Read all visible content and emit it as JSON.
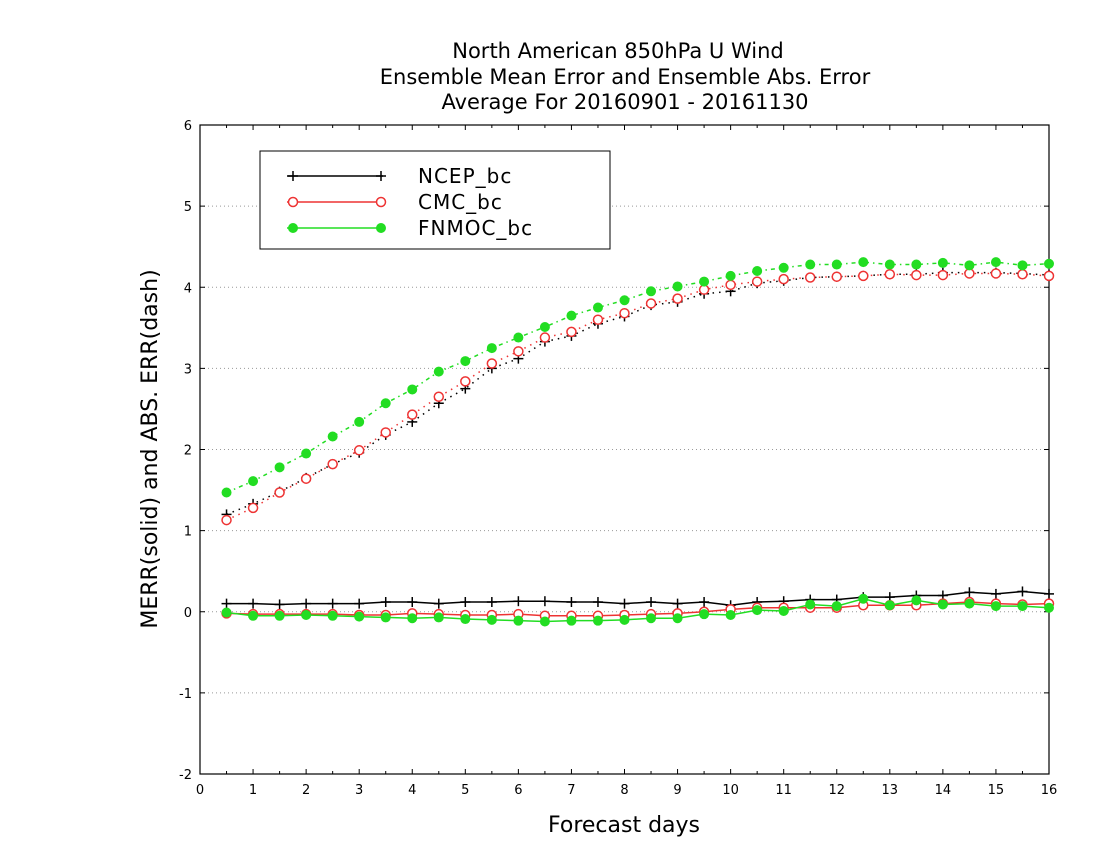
{
  "chart_data": {
    "type": "line",
    "title_lines": [
      "North American 850hPa U Wind",
      "Ensemble Mean Error and Ensemble Abs. Error",
      "Average For 20160901 - 20161130"
    ],
    "xlabel": "Forecast days",
    "ylabel": "MERR(solid) and ABS. ERR(dash)",
    "xlim": [
      0,
      16
    ],
    "ylim": [
      -2,
      6
    ],
    "x_ticks": [
      "0",
      "1",
      "2",
      "3",
      "4",
      "5",
      "6",
      "7",
      "8",
      "9",
      "10",
      "11",
      "12",
      "13",
      "14",
      "15",
      "16"
    ],
    "y_ticks": [
      "-2",
      "-1",
      "0",
      "1",
      "2",
      "3",
      "4",
      "5",
      "6"
    ],
    "grid": "horizontal dotted",
    "legend_position": "top-left",
    "x": [
      0.5,
      1,
      1.5,
      2,
      2.5,
      3,
      3.5,
      4,
      4.5,
      5,
      5.5,
      6,
      6.5,
      7,
      7.5,
      8,
      8.5,
      9,
      9.5,
      10,
      10.5,
      11,
      11.5,
      12,
      12.5,
      13,
      13.5,
      14,
      14.5,
      15,
      15.5,
      16
    ],
    "series": [
      {
        "name": "NCEP_bc",
        "color": "#000000",
        "marker": "plus",
        "merr": [
          0.1,
          0.1,
          0.09,
          0.1,
          0.1,
          0.1,
          0.12,
          0.12,
          0.1,
          0.12,
          0.12,
          0.13,
          0.13,
          0.12,
          0.12,
          0.1,
          0.12,
          0.1,
          0.12,
          0.08,
          0.12,
          0.13,
          0.15,
          0.15,
          0.18,
          0.18,
          0.2,
          0.2,
          0.24,
          0.22,
          0.25,
          0.22
        ],
        "abs_err": [
          1.2,
          1.33,
          1.48,
          1.65,
          1.82,
          1.96,
          2.18,
          2.34,
          2.57,
          2.75,
          3.0,
          3.12,
          3.33,
          3.4,
          3.55,
          3.64,
          3.78,
          3.82,
          3.92,
          3.95,
          4.05,
          4.08,
          4.12,
          4.13,
          4.14,
          4.16,
          4.16,
          4.18,
          4.18,
          4.18,
          4.17,
          4.15
        ]
      },
      {
        "name": "CMC_bc",
        "color": "#ee3333",
        "marker": "open-circle",
        "merr": [
          -0.02,
          -0.03,
          -0.03,
          -0.03,
          -0.03,
          -0.04,
          -0.04,
          -0.02,
          -0.03,
          -0.04,
          -0.04,
          -0.03,
          -0.05,
          -0.05,
          -0.05,
          -0.04,
          -0.03,
          -0.02,
          0.0,
          0.03,
          0.05,
          0.05,
          0.05,
          0.05,
          0.08,
          0.08,
          0.08,
          0.1,
          0.12,
          0.1,
          0.09,
          0.1
        ],
        "abs_err": [
          1.13,
          1.28,
          1.47,
          1.64,
          1.82,
          1.99,
          2.21,
          2.43,
          2.65,
          2.84,
          3.06,
          3.21,
          3.38,
          3.45,
          3.6,
          3.68,
          3.8,
          3.86,
          3.97,
          4.03,
          4.07,
          4.1,
          4.12,
          4.13,
          4.14,
          4.16,
          4.15,
          4.15,
          4.17,
          4.17,
          4.16,
          4.14
        ]
      },
      {
        "name": "FNMOC_bc",
        "color": "#22dd22",
        "marker": "filled-circle",
        "merr": [
          -0.01,
          -0.05,
          -0.05,
          -0.04,
          -0.05,
          -0.06,
          -0.07,
          -0.08,
          -0.07,
          -0.09,
          -0.1,
          -0.11,
          -0.12,
          -0.11,
          -0.11,
          -0.1,
          -0.08,
          -0.08,
          -0.03,
          -0.04,
          0.02,
          0.01,
          0.09,
          0.07,
          0.16,
          0.08,
          0.14,
          0.09,
          0.1,
          0.07,
          0.07,
          0.05
        ],
        "abs_err": [
          1.47,
          1.61,
          1.78,
          1.95,
          2.16,
          2.34,
          2.57,
          2.74,
          2.96,
          3.09,
          3.25,
          3.38,
          3.51,
          3.65,
          3.75,
          3.84,
          3.95,
          4.01,
          4.07,
          4.14,
          4.2,
          4.24,
          4.28,
          4.28,
          4.31,
          4.28,
          4.28,
          4.3,
          4.27,
          4.31,
          4.27,
          4.29
        ]
      }
    ]
  }
}
